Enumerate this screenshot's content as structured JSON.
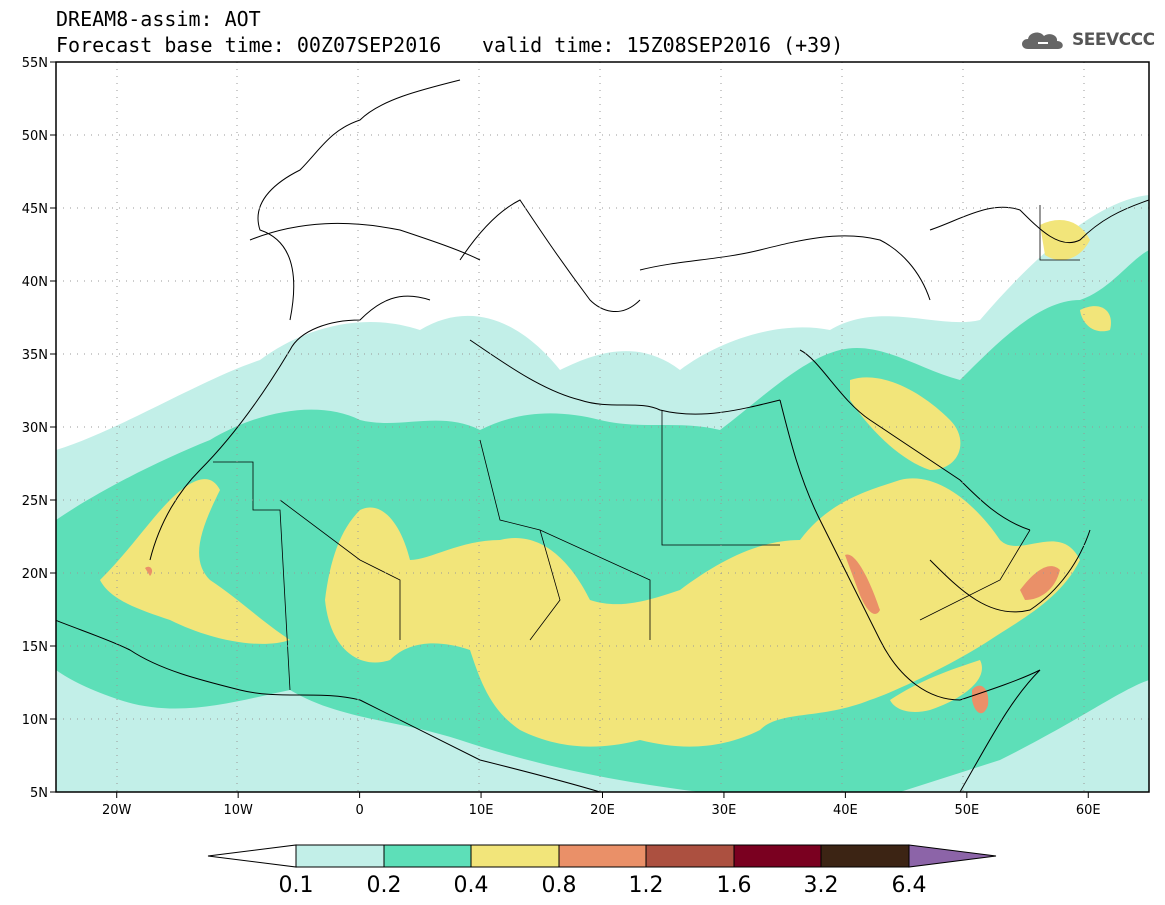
{
  "header": {
    "title": "DREAM8-assim: AOT",
    "base_time": "Forecast base time: 00Z07SEP2016",
    "valid_time": "valid time: 15Z08SEP2016 (+39)",
    "logo_text": "SEEVCCC"
  },
  "map": {
    "lon_range": [
      -25,
      65
    ],
    "lat_range": [
      5,
      55
    ],
    "lon_ticks": [
      {
        "value": -20,
        "label": "20W"
      },
      {
        "value": -10,
        "label": "10W"
      },
      {
        "value": 0,
        "label": "0"
      },
      {
        "value": 10,
        "label": "10E"
      },
      {
        "value": 20,
        "label": "20E"
      },
      {
        "value": 30,
        "label": "30E"
      },
      {
        "value": 40,
        "label": "40E"
      },
      {
        "value": 50,
        "label": "50E"
      },
      {
        "value": 60,
        "label": "60E"
      }
    ],
    "lat_ticks": [
      {
        "value": 55,
        "label": "55N"
      },
      {
        "value": 50,
        "label": "50N"
      },
      {
        "value": 45,
        "label": "45N"
      },
      {
        "value": 40,
        "label": "40N"
      },
      {
        "value": 35,
        "label": "35N"
      },
      {
        "value": 30,
        "label": "30N"
      },
      {
        "value": 25,
        "label": "25N"
      },
      {
        "value": 20,
        "label": "20N"
      },
      {
        "value": 15,
        "label": "15N"
      },
      {
        "value": 10,
        "label": "10N"
      },
      {
        "value": 5,
        "label": "5N"
      }
    ]
  },
  "colorbar": {
    "levels": [
      "0.1",
      "0.2",
      "0.4",
      "0.8",
      "1.2",
      "1.6",
      "3.2",
      "6.4"
    ],
    "colors": [
      "#ffffff",
      "#c2efe8",
      "#5ddfb8",
      "#f2e57a",
      "#ea9068",
      "#ac5040",
      "#7a0020",
      "#3c2414",
      "#8c64a8"
    ],
    "level_colors": {
      "0.1-0.2": "#c2efe8",
      "0.2-0.4": "#5ddfb8",
      "0.4-0.8": "#f2e57a",
      "0.8-1.2": "#ea9068",
      "1.2-1.6": "#ac5040",
      "1.6-3.2": "#7a0020",
      "3.2-6.4": "#3c2414"
    }
  }
}
